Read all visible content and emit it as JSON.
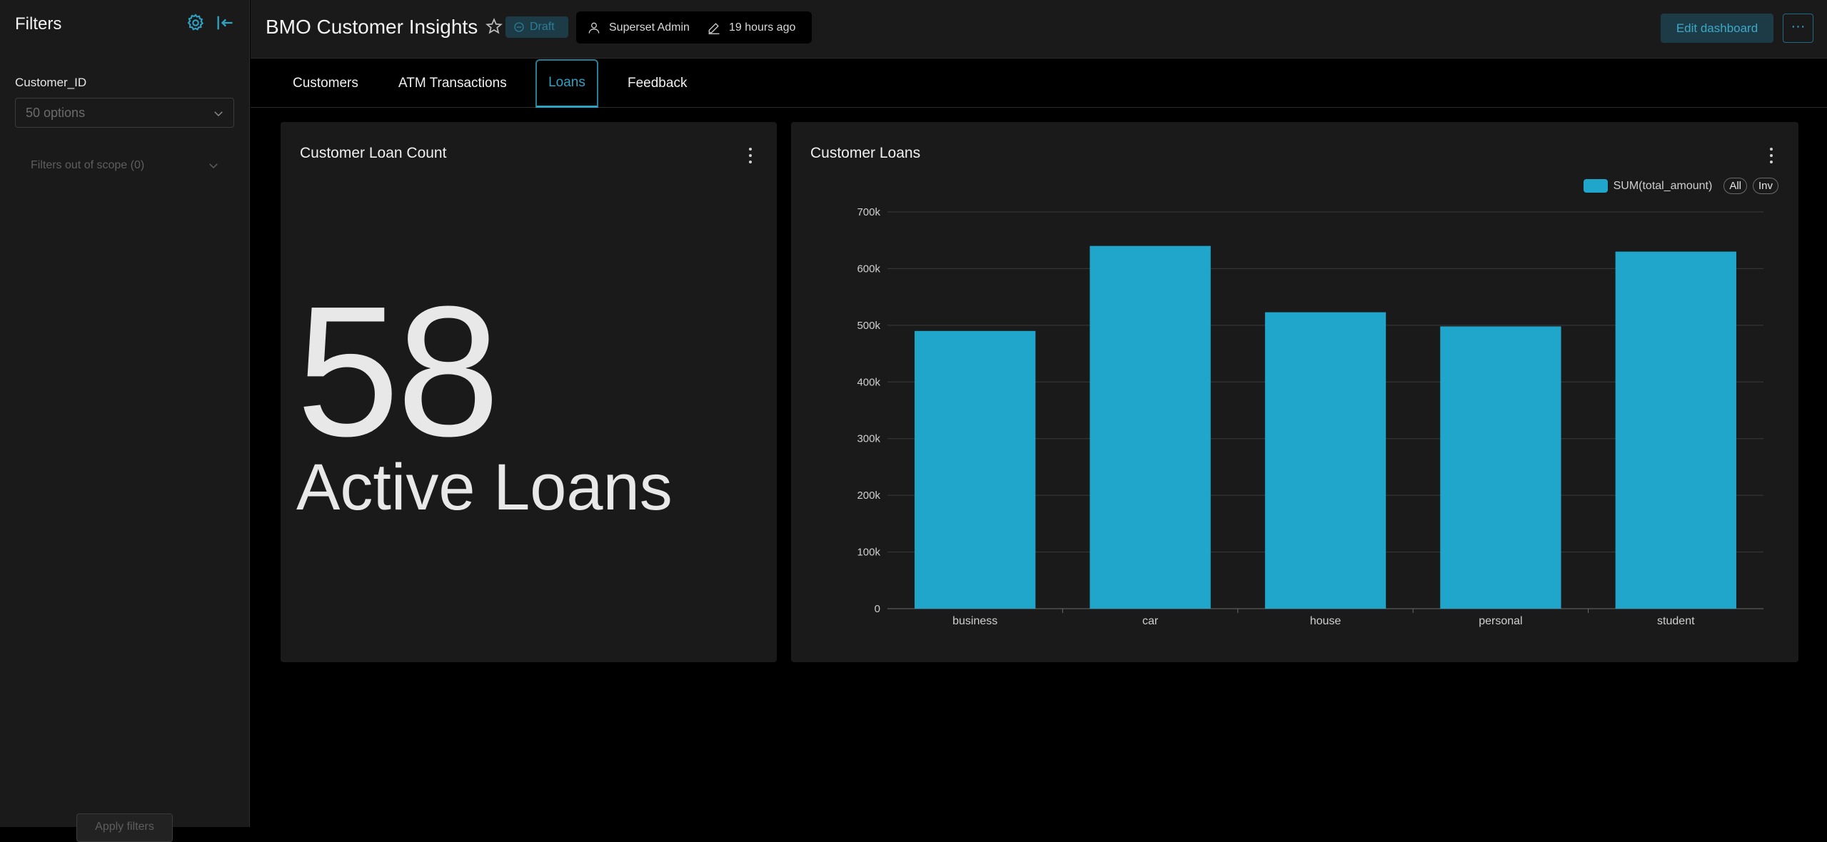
{
  "sidebar": {
    "title": "Filters",
    "filter_label": "Customer_ID",
    "filter_placeholder": "50 options",
    "out_of_scope": "Filters out of scope (0)",
    "apply_label": "Apply filters"
  },
  "header": {
    "title": "BMO Customer Insights",
    "draft": "Draft",
    "owner": "Superset Admin",
    "modified": "19 hours ago",
    "edit_label": "Edit dashboard",
    "more_label": "···"
  },
  "tabs": [
    {
      "label": "Customers"
    },
    {
      "label": "ATM Transactions"
    },
    {
      "label": "Loans"
    },
    {
      "label": "Feedback"
    }
  ],
  "active_tab": "Loans",
  "big_number_card": {
    "title": "Customer Loan Count",
    "value": "58",
    "subtitle": "Active Loans"
  },
  "bar_card": {
    "title": "Customer Loans",
    "legend_all": "All",
    "legend_inv": "Inv"
  },
  "colors": {
    "accent": "#20a6cb",
    "draft_bg": "#1d3b46",
    "panel": "#1a1a1a"
  },
  "chart_data": {
    "type": "bar",
    "categories": [
      "business",
      "car",
      "house",
      "personal",
      "student"
    ],
    "series": [
      {
        "name": "SUM(total_amount)",
        "values": [
          490000,
          640000,
          523000,
          498000,
          630000
        ]
      }
    ],
    "ylim": [
      0,
      700000
    ],
    "yticks": [
      "0",
      "100k",
      "200k",
      "300k",
      "400k",
      "500k",
      "600k",
      "700k"
    ],
    "grid": true,
    "legend_position": "top-right"
  }
}
